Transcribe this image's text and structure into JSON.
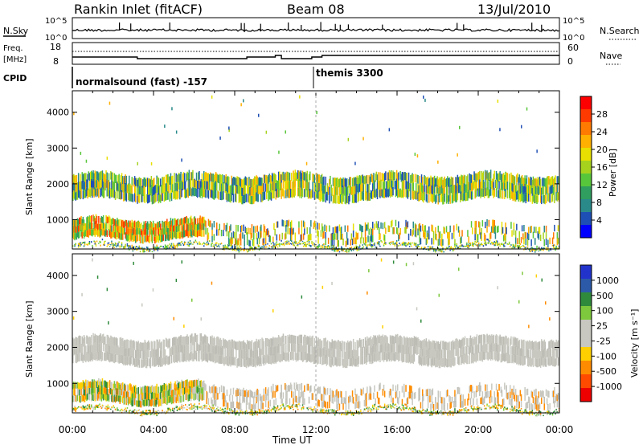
{
  "header": {
    "station": "Rankin Inlet (fitACF)",
    "beam": "Beam 08",
    "date": "13/Jul/2010"
  },
  "noise_panel": {
    "left_label": "N.Sky",
    "right_label": "N.Search",
    "ticks_left": [
      "10^5",
      "10^0"
    ],
    "ticks_right": [
      "10^5",
      "10^0"
    ]
  },
  "freq_panel": {
    "left_label_1": "Freq.",
    "left_label_2": "[MHz]",
    "ticks_left": [
      "18",
      "8"
    ],
    "right_label": "Nave",
    "ticks_right": [
      "60",
      "0"
    ]
  },
  "cpid_panel": {
    "label": "CPID",
    "segments": [
      {
        "text": "normalsound (fast) -157",
        "start_hour": 0
      },
      {
        "text": "themis 3300",
        "start_hour": 12.0
      }
    ]
  },
  "chart_data": [
    {
      "type": "heatmap",
      "name": "power",
      "ylabel": "Slant Range [km]",
      "yticks": [
        1000,
        2000,
        3000,
        4000
      ],
      "ylim": [
        180,
        4600
      ],
      "xlim": [
        0,
        24
      ],
      "colorbar_label": "Power [dB]",
      "colorbar_ticks": [
        "28",
        "24",
        "20",
        "16",
        "12",
        "8",
        "4"
      ],
      "colorbar_colors": [
        "#ff0000",
        "#ff3a00",
        "#ff7a00",
        "#ffb000",
        "#e8e000",
        "#a6d21e",
        "#58c63a",
        "#2f9e5e",
        "#2a8a8a",
        "#1e4fb4",
        "#0000ff"
      ]
    },
    {
      "type": "heatmap",
      "name": "velocity",
      "ylabel": "Slant Range [km]",
      "yticks": [
        1000,
        2000,
        3000,
        4000
      ],
      "ylim": [
        180,
        4600
      ],
      "xlim": [
        0,
        24
      ],
      "colorbar_label": "Velocity [m s⁻¹]",
      "colorbar_ticks": [
        "1000",
        "500",
        "100",
        "25",
        "-25",
        "-100",
        "-500",
        "-1000"
      ],
      "colorbar_colors": [
        "#2233cc",
        "#2c5aa8",
        "#2f8a3c",
        "#7dc83c",
        "#c8c8c0",
        "#c8c8c0",
        "#ffd000",
        "#ff8c00",
        "#ff4a00",
        "#ee0000"
      ]
    }
  ],
  "time_axis": {
    "ticks": [
      "00:00",
      "04:00",
      "08:00",
      "12:00",
      "16:00",
      "20:00",
      "00:00"
    ],
    "label": "Time UT"
  }
}
